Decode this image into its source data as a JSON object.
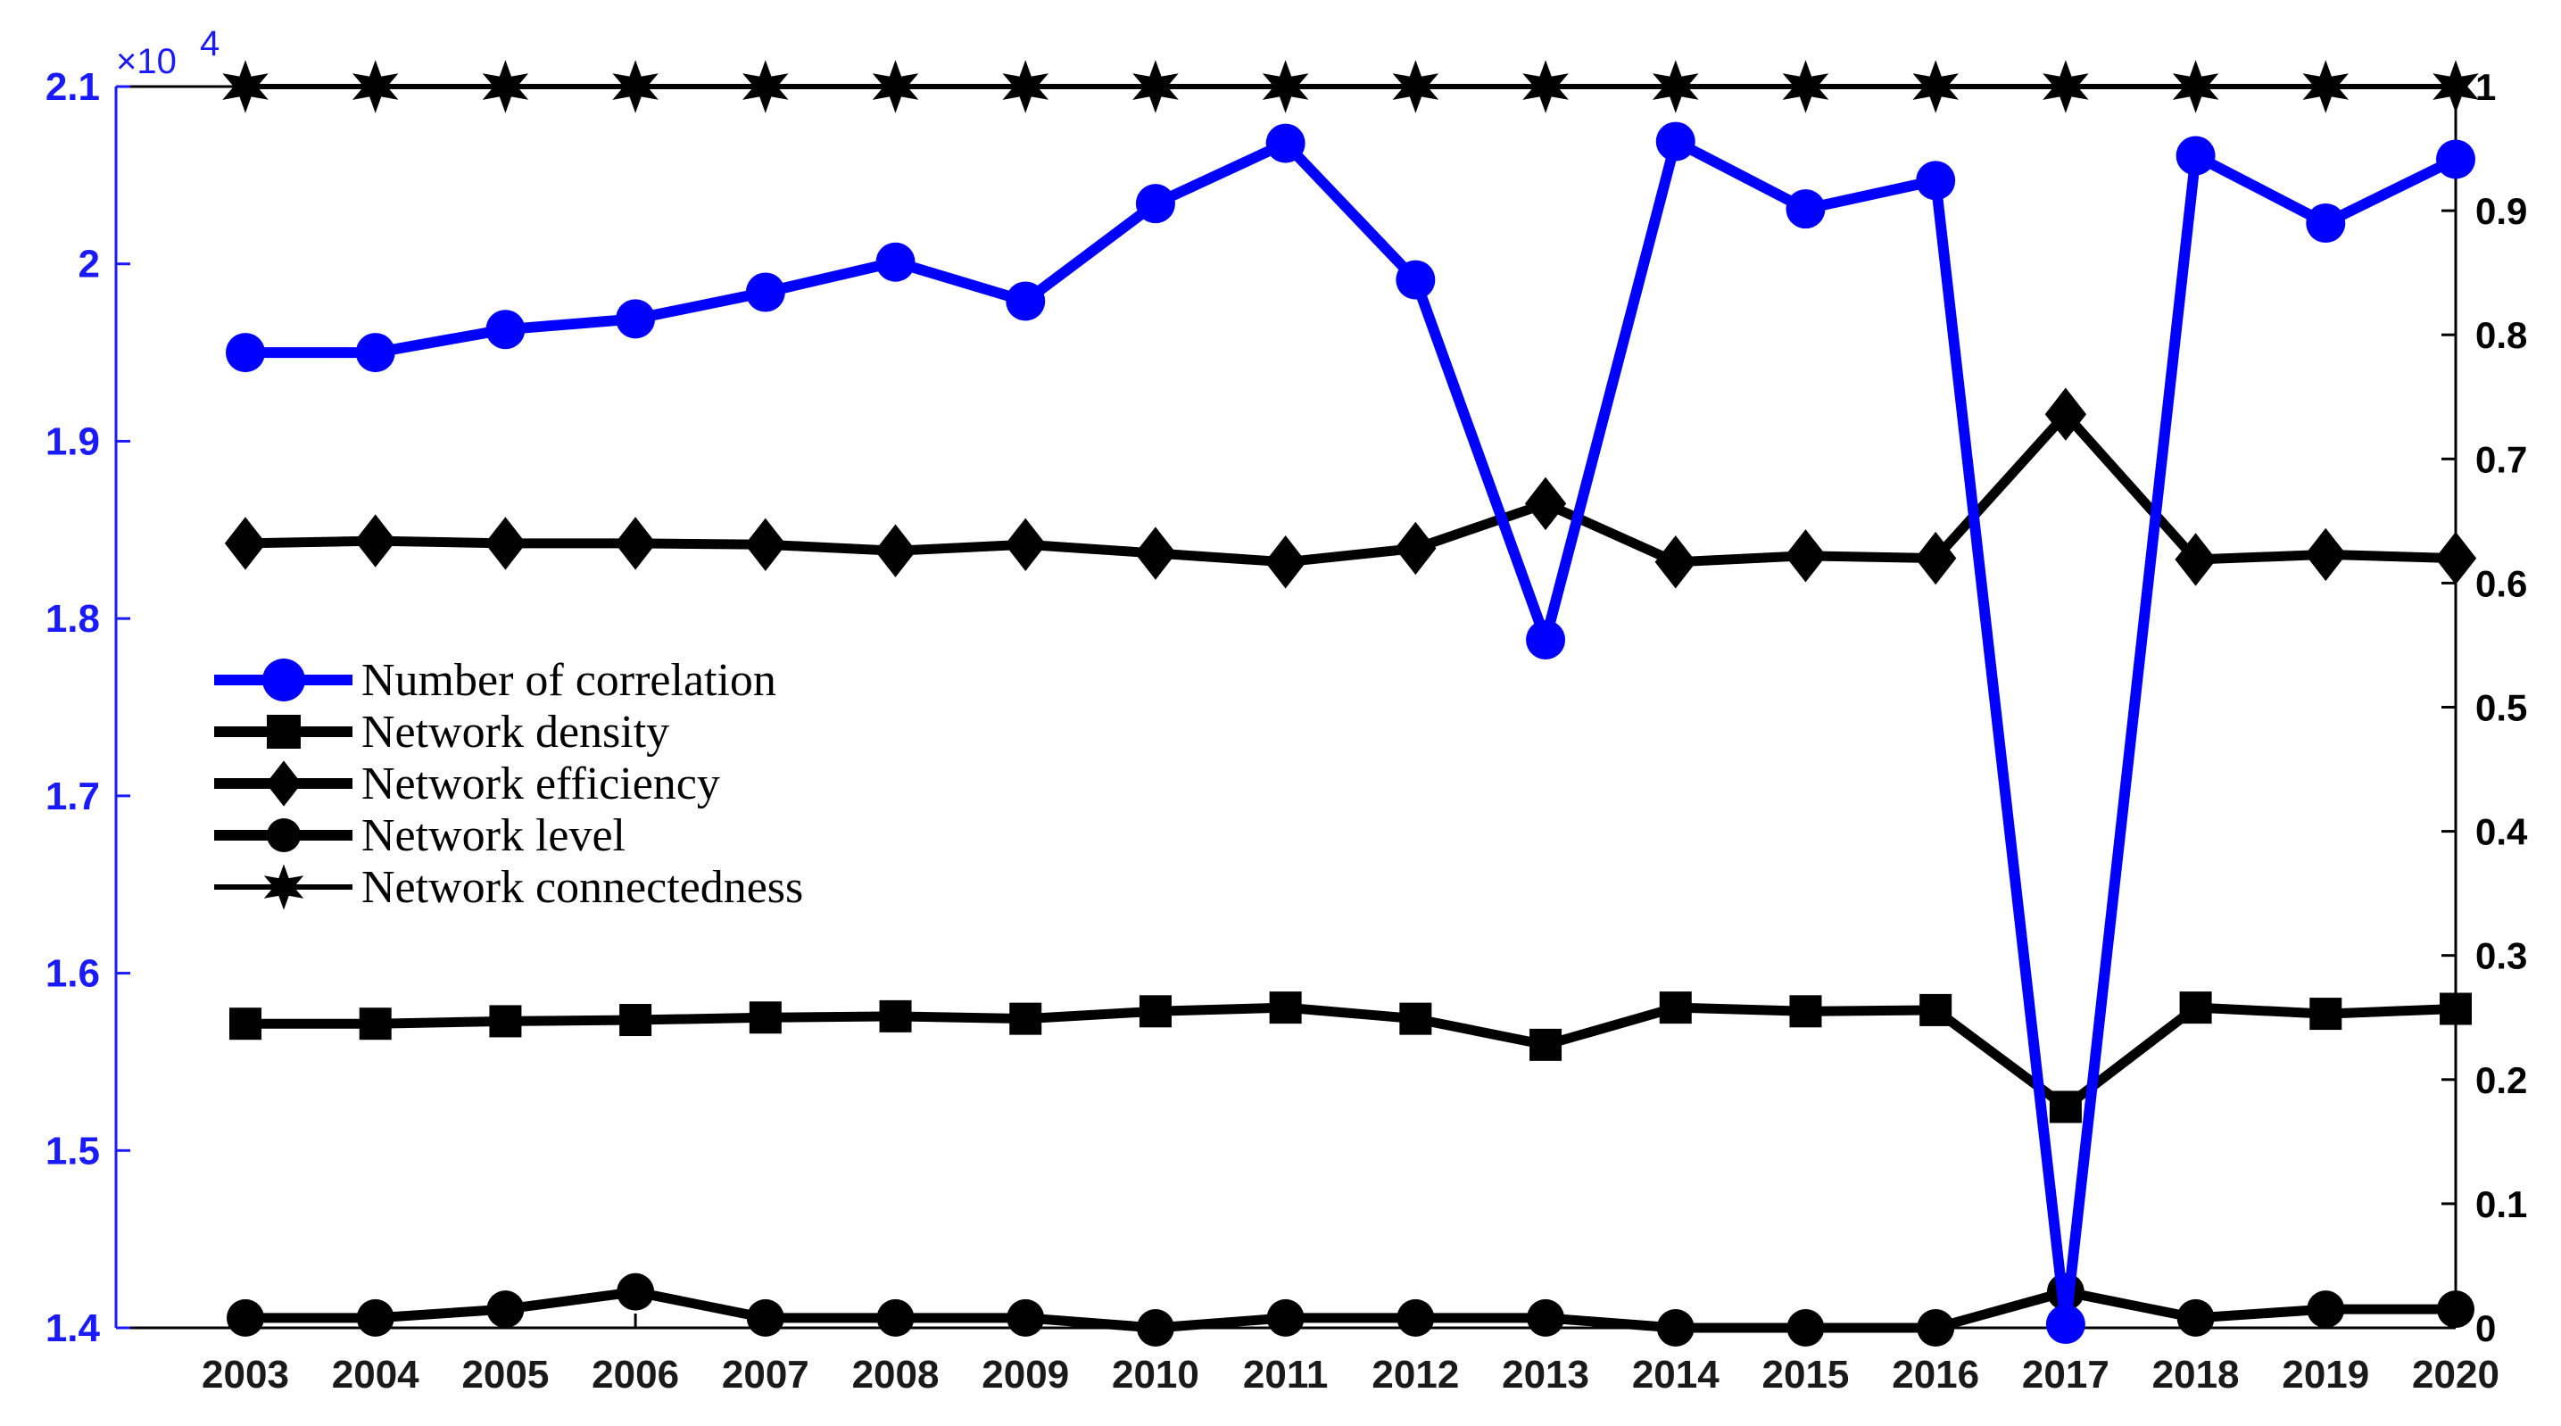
{
  "chart_data": {
    "type": "line",
    "categories": [
      "2003",
      "2004",
      "2005",
      "2006",
      "2007",
      "2008",
      "2009",
      "2010",
      "2011",
      "2012",
      "2013",
      "2014",
      "2015",
      "2016",
      "2017",
      "2018",
      "2019",
      "2020"
    ],
    "left_axis": {
      "exponent_label": "×10",
      "exponent_power": "4",
      "ylim": [
        1.4,
        2.1
      ],
      "ticks": [
        "1.4",
        "1.5",
        "1.6",
        "1.7",
        "1.8",
        "1.9",
        "2",
        "2.1"
      ],
      "color": "#1a1aff"
    },
    "right_axis": {
      "ylim": [
        0,
        1
      ],
      "ticks": [
        "0",
        "0.1",
        "0.2",
        "0.3",
        "0.4",
        "0.5",
        "0.6",
        "0.7",
        "0.8",
        "0.9",
        "1"
      ]
    },
    "series": [
      {
        "name": "Number of correlation",
        "axis": "left",
        "marker": "circle",
        "color": "#0000ff",
        "values": [
          1.95,
          1.95,
          1.963,
          1.969,
          1.984,
          2.001,
          1.979,
          2.034,
          2.068,
          1.991,
          1.788,
          2.069,
          2.031,
          2.047,
          1.402,
          2.061,
          2.023,
          2.059
        ]
      },
      {
        "name": "Network density",
        "axis": "right",
        "marker": "square",
        "color": "#000000",
        "values": [
          0.245,
          0.245,
          0.247,
          0.248,
          0.25,
          0.251,
          0.249,
          0.255,
          0.258,
          0.249,
          0.228,
          0.258,
          0.255,
          0.256,
          0.178,
          0.258,
          0.253,
          0.257
        ]
      },
      {
        "name": "Network efficiency",
        "axis": "right",
        "marker": "diamond",
        "color": "#000000",
        "values": [
          0.632,
          0.634,
          0.632,
          0.632,
          0.631,
          0.626,
          0.631,
          0.624,
          0.617,
          0.628,
          0.664,
          0.617,
          0.622,
          0.62,
          0.736,
          0.619,
          0.623,
          0.62
        ]
      },
      {
        "name": "Network level",
        "axis": "right",
        "marker": "circle",
        "color": "#000000",
        "values": [
          0.008,
          0.008,
          0.015,
          0.029,
          0.008,
          0.008,
          0.008,
          0.0,
          0.008,
          0.008,
          0.008,
          0.0,
          0.0,
          0.0,
          0.029,
          0.008,
          0.015,
          0.015
        ]
      },
      {
        "name": "Network connectedness",
        "axis": "right",
        "marker": "star",
        "color": "#000000",
        "values": [
          1,
          1,
          1,
          1,
          1,
          1,
          1,
          1,
          1,
          1,
          1,
          1,
          1,
          1,
          1,
          1,
          1,
          1
        ]
      }
    ],
    "legend": {
      "placement": "center-left"
    }
  }
}
